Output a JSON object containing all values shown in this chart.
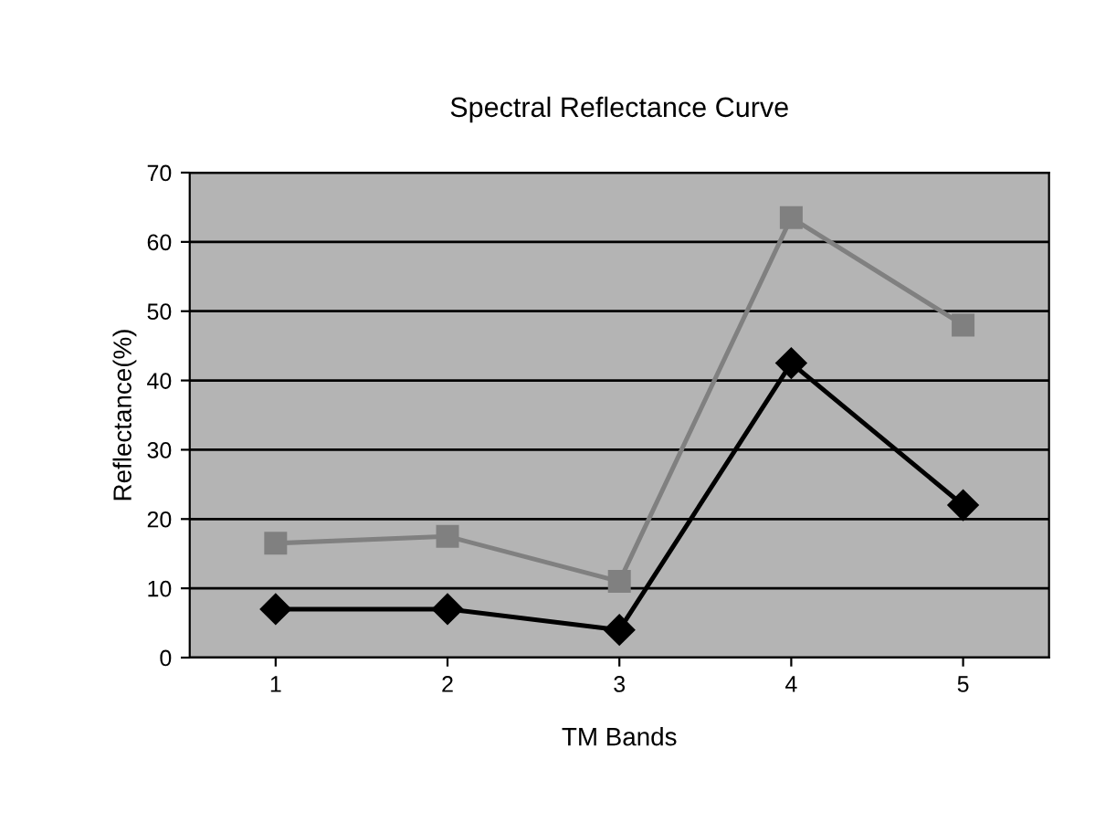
{
  "chart_data": {
    "type": "line",
    "title": "Spectral Reflectance Curve",
    "xlabel": "TM Bands",
    "ylabel": "Reflectance(%)",
    "categories": [
      "1",
      "2",
      "3",
      "4",
      "5"
    ],
    "series": [
      {
        "color": "#808080",
        "marker": "square",
        "values": [
          16.5,
          17.5,
          11,
          63.5,
          48
        ]
      },
      {
        "color": "#000000",
        "marker": "diamond",
        "values": [
          7,
          7,
          4,
          42.5,
          22
        ]
      }
    ],
    "ylim": [
      0,
      70
    ],
    "yticks": [
      0,
      10,
      20,
      30,
      40,
      50,
      60,
      70
    ],
    "grid": "y",
    "legend": false
  }
}
